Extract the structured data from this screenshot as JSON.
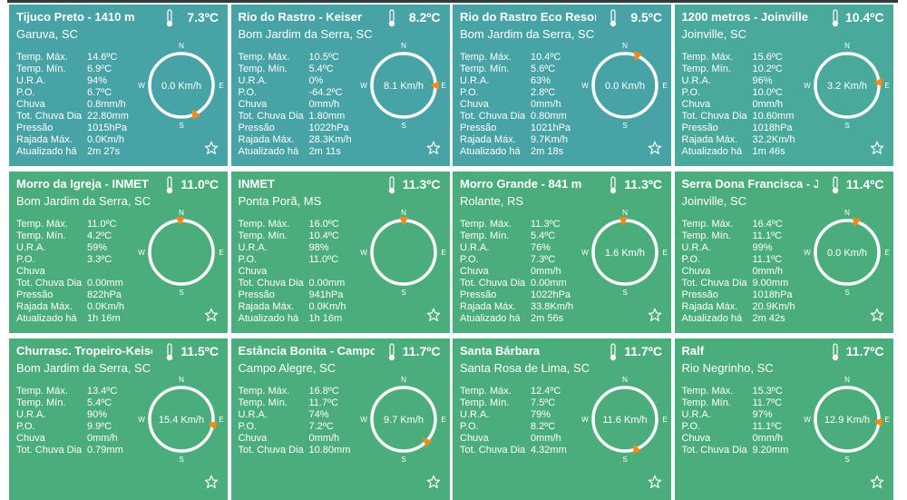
{
  "row_labels": [
    "Temp. Máx.",
    "Temp. Mín.",
    "U.R.A.",
    "P.O.",
    "Chuva",
    "Tot. Chuva Dia",
    "Pressão",
    "Rajada Máx.",
    "Atualizado há"
  ],
  "compass": [
    "N",
    "E",
    "S",
    "W"
  ],
  "cards": [
    {
      "title": "Tijuco Preto - 1410 m",
      "temp": "7.3ºC",
      "location": "Garuva, SC",
      "color": "#47a3a6",
      "values": [
        "14.6ºC",
        "6.9ºC",
        "94%",
        "6.7ºC",
        "0.8mm/h",
        "22.80mm",
        "1015hPa",
        "0.0Km/h",
        "2m 27s"
      ],
      "wind": "0.0 Km/h",
      "wind_direction": 155
    },
    {
      "title": "Rio do Rastro - Keiser",
      "temp": "8.2ºC",
      "location": "Bom Jardim da Serra, SC",
      "color": "#47a3a6",
      "values": [
        "10.5ºC",
        "5.4ºC",
        "0%",
        "-64.2ºC",
        "0mm/h",
        "1.80mm",
        "1022hPa",
        "28.3Km/h",
        "2m 11s"
      ],
      "wind": "8.1 Km/h",
      "wind_direction": 90
    },
    {
      "title": "Rio do Rastro Eco Resort",
      "temp": "9.5ºC",
      "location": "Bom Jardim da Serra, SC",
      "color": "#47a3a6",
      "values": [
        "10.4ºC",
        "5.6ºC",
        "63%",
        "2.8ºC",
        "0mm/h",
        "0.80mm",
        "1021hPa",
        "9.7Km/h",
        "2m 18s"
      ],
      "wind": "0.0 Km/h",
      "wind_direction": 22
    },
    {
      "title": "1200 metros - Joinville",
      "temp": "10.4ºC",
      "location": "Joinville, SC",
      "color": "#49a99b",
      "values": [
        "15.6ºC",
        "10.2ºC",
        "96%",
        "10.0ºC",
        "0mm/h",
        "10.60mm",
        "1018hPa",
        "32.2Km/h",
        "1m 46s"
      ],
      "wind": "3.2 Km/h",
      "wind_direction": 85
    },
    {
      "title": "Morro da Igreja - INMET",
      "temp": "11.0ºC",
      "location": "Bom Jardim da Serra, SC",
      "color": "#4cad7c",
      "values": [
        "11.0ºC",
        "4.2ºC",
        "59%",
        "3.3ºC",
        null,
        "0.00mm",
        "822hPa",
        "0.0Km/h",
        "1h 16m"
      ],
      "wind_direction": 358
    },
    {
      "title": "INMET",
      "temp": "11.3ºC",
      "location": "Ponta Porã, MS",
      "color": "#4cad7c",
      "values": [
        "16.0ºC",
        "10.4ºC",
        "98%",
        "11.0ºC",
        null,
        "0.00mm",
        "941hPa",
        "0.0Km/h",
        "1h 16m"
      ],
      "wind_direction": 0
    },
    {
      "title": "Morro Grande - 841 m",
      "temp": "11.3ºC",
      "location": "Rolante, RS",
      "color": "#4cad7c",
      "values": [
        "11.3ºC",
        "5.4ºC",
        "76%",
        "7.3ºC",
        "0mm/h",
        "0.00mm",
        "1022hPa",
        "33.8Km/h",
        "2m 56s"
      ],
      "wind": "1.6 Km/h",
      "wind_direction": 357
    },
    {
      "title": "Serra Dona Francisca - Jo",
      "temp": "11.4ºC",
      "location": "Joinville, SC",
      "color": "#4cad7c",
      "values": [
        "16.4ºC",
        "11.1ºC",
        "99%",
        "11.1ºC",
        "0mm/h",
        "9.00mm",
        "1018hPa",
        "20.9Km/h",
        "2m 42s"
      ],
      "wind": "0.0 Km/h",
      "wind_direction": 16
    },
    {
      "title": "Churrasc. Tropeiro-Keiser",
      "temp": "11.5ºC",
      "location": "Bom Jardim da Serra, SC",
      "color": "#4cad7c",
      "values": [
        "13.4ºC",
        "5.4ºC",
        "90%",
        "9.9ºC",
        "0mm/h",
        "0.79mm"
      ],
      "wind": "15.4 Km/h",
      "wind_direction": 100
    },
    {
      "title": "Estância Bonita - Campo A",
      "temp": "11.7ºC",
      "location": "Campo Alegre, SC",
      "color": "#4cad7c",
      "values": [
        "16.8ºC",
        "11.7ºC",
        "74%",
        "7.2ºC",
        "0mm/h",
        "10.80mm"
      ],
      "wind": "9.7 Km/h",
      "wind_direction": 134
    },
    {
      "title": "Santa Bárbara",
      "temp": "11.7ºC",
      "location": "Santa Rosa de Lima, SC",
      "color": "#4cad7c",
      "values": [
        "12.4ºC",
        "7.5ºC",
        "79%",
        "8.2ºC",
        "0mm/h",
        "4.32mm"
      ],
      "wind": "11.6 Km/h",
      "wind_direction": 160
    },
    {
      "title": "Ralf",
      "temp": "11.7ºC",
      "location": "Rio Negrinho, SC",
      "color": "#4cad7c",
      "values": [
        "15.3ºC",
        "11.7ºC",
        "97%",
        "11.1ºC",
        "0mm/h",
        "9.20mm"
      ],
      "wind": "12.9 Km/h",
      "wind_direction": 95
    }
  ]
}
